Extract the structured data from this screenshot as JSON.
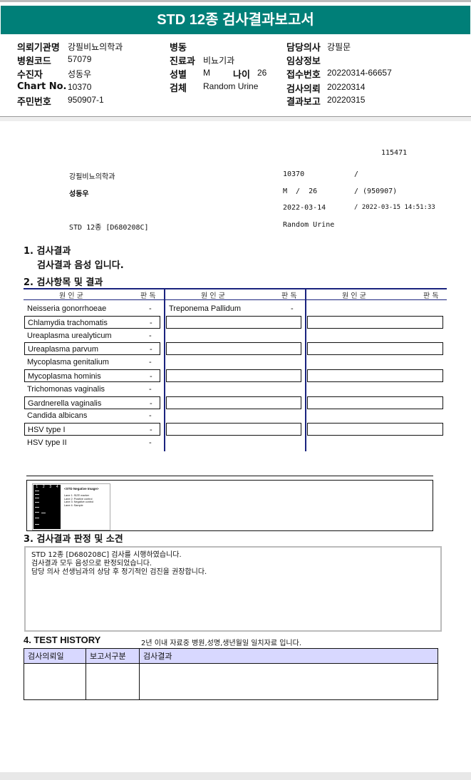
{
  "title": "STD 12종 검사결과보고서",
  "info": {
    "col1": [
      {
        "label": "의뢰기관명",
        "value": "강필비뇨의학과"
      },
      {
        "label": "병원코드",
        "value": "57079"
      },
      {
        "label": "수진자",
        "value": "성동우"
      },
      {
        "label": "Chart No.",
        "value": "10370"
      },
      {
        "label": "주민번호",
        "value": "950907-1"
      }
    ],
    "col2": [
      {
        "label": "병동",
        "value": ""
      },
      {
        "label": "진료과",
        "value": "비뇨기과"
      },
      {
        "label": "성별",
        "value": "M"
      },
      {
        "label": "검체",
        "value": "Random Urine"
      }
    ],
    "age_label": "나이",
    "age_value": "26",
    "col3": [
      {
        "label": "담당의사",
        "value": "강필문"
      },
      {
        "label": "임상정보",
        "value": ""
      },
      {
        "label": "접수번호",
        "value": "20220314-66657"
      },
      {
        "label": "검사의뢰",
        "value": "20220314"
      },
      {
        "label": "결과보고",
        "value": "20220315"
      }
    ]
  },
  "report": {
    "id": "115471",
    "clinic": "강필비뇨의학과",
    "patient": "성동우",
    "test": "STD 12종 [D680208C]",
    "chart": "10370",
    "chart_sep": "/",
    "sex_age": "M  /  26",
    "birth": "/ (950907)",
    "date": "2022-03-14",
    "report_date": "/ 2022-03-15 14:51:33",
    "specimen": "Random Urine"
  },
  "section1": {
    "title": "1. 검사결과",
    "summary": "검사결과 음성 입니다."
  },
  "section2": {
    "title": "2. 검사항목 및 결과",
    "header_organism": "원  인  균",
    "header_result": "판 독",
    "col1": [
      {
        "name": "Neisseria gonorrhoeae",
        "result": "-"
      },
      {
        "name": "Chlamydia trachomatis",
        "result": "-"
      },
      {
        "name": "Ureaplasma urealyticum",
        "result": "-"
      },
      {
        "name": "Ureaplasma parvum",
        "result": "-"
      },
      {
        "name": "Mycoplasma genitalium",
        "result": "-"
      },
      {
        "name": "Mycoplasma hominis",
        "result": "-"
      },
      {
        "name": "Trichomonas vaginalis",
        "result": "-"
      },
      {
        "name": "Gardnerella vaginalis",
        "result": "-"
      },
      {
        "name": "Candida albicans",
        "result": "-"
      },
      {
        "name": "HSV type I",
        "result": "-"
      },
      {
        "name": "HSV type II",
        "result": "-"
      }
    ],
    "col2": [
      {
        "name": "Treponema Pallidum",
        "result": "-"
      }
    ]
  },
  "gel_image": {
    "lanes": [
      "1",
      "2",
      "3",
      "4"
    ],
    "title": "<STD Negative Image>",
    "legend": [
      "Lane 1: SIZE marker",
      "Lane 2: Positive control",
      "Lane 3: Negative control",
      "Lane 4: Sample"
    ]
  },
  "section3": {
    "title": "3. 검사결과 판정 및 소견",
    "lines": [
      "STD 12종 [D680208C] 검사를 시행하였습니다.",
      "검사결과 모두 음성으로 판정되었습니다.",
      "담당 의사 선생님과의 상담 후 정기적인 검진을 권장합니다."
    ]
  },
  "section4": {
    "title": "4. TEST HISTORY",
    "note": "2년 이내 자료중 병원,성명,생년월일 일치자료 입니다.",
    "headers": [
      "검사의뢰일",
      "보고서구분",
      "검사결과"
    ]
  },
  "colors": {
    "header": "#007f78",
    "table_line": "#1a237e",
    "history_header": "#d8d8ff"
  }
}
